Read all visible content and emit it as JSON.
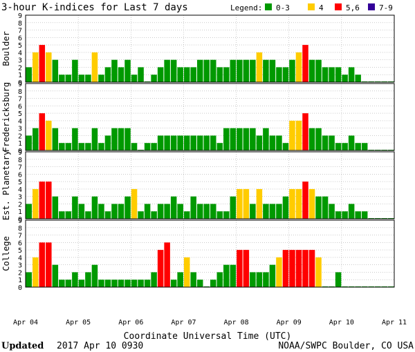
{
  "chart_data": {
    "type": "bar",
    "title": "3-hour K-indices for Last 7 days",
    "legend": {
      "label": "Legend:",
      "entries": [
        {
          "label": "0-3",
          "color": "#009900"
        },
        {
          "label": "4",
          "color": "#ffcc00"
        },
        {
          "label": "5,6",
          "color": "#ff0000"
        },
        {
          "label": "7-9",
          "color": "#330099"
        }
      ]
    },
    "xlabel": "Coordinate Universal Time (UTC)",
    "x_ticks": [
      "Apr 04",
      "Apr 05",
      "Apr 06",
      "Apr 07",
      "Apr 08",
      "Apr 09",
      "Apr 10",
      "Apr 11"
    ],
    "ylim": [
      0,
      9
    ],
    "y_ticks": [
      "0",
      "1",
      "2",
      "3",
      "4",
      "5",
      "6",
      "7",
      "8",
      "9"
    ],
    "bins_per_day": 8,
    "grid": true,
    "series": [
      {
        "name": "Boulder",
        "values": [
          2,
          4,
          5,
          4,
          3,
          1,
          1,
          3,
          1,
          1,
          4,
          1,
          2,
          3,
          2,
          3,
          1,
          2,
          0,
          1,
          2,
          3,
          3,
          2,
          2,
          2,
          3,
          3,
          3,
          2,
          2,
          3,
          3,
          3,
          3,
          4,
          3,
          3,
          2,
          2,
          3,
          4,
          5,
          3,
          3,
          2,
          2,
          2,
          1,
          2,
          1,
          0,
          0,
          0,
          0,
          0
        ]
      },
      {
        "name": "Fredericksburg",
        "values": [
          2,
          3,
          5,
          4,
          3,
          1,
          1,
          3,
          1,
          1,
          3,
          1,
          2,
          3,
          3,
          3,
          1,
          0,
          1,
          1,
          2,
          2,
          2,
          2,
          2,
          2,
          2,
          2,
          2,
          1,
          3,
          3,
          3,
          3,
          3,
          2,
          3,
          2,
          2,
          1,
          4,
          4,
          5,
          3,
          3,
          2,
          2,
          1,
          1,
          2,
          1,
          1,
          0,
          0,
          0,
          0
        ]
      },
      {
        "name": "Est. Planetary",
        "values": [
          2,
          4,
          5,
          5,
          3,
          1,
          1,
          3,
          2,
          1,
          3,
          2,
          1,
          2,
          2,
          3,
          4,
          1,
          2,
          1,
          2,
          2,
          3,
          2,
          1,
          3,
          2,
          2,
          2,
          1,
          1,
          3,
          4,
          4,
          2,
          4,
          2,
          2,
          2,
          3,
          4,
          4,
          5,
          4,
          3,
          3,
          2,
          1,
          1,
          2,
          1,
          1,
          0,
          0,
          0,
          0
        ]
      },
      {
        "name": "College",
        "values": [
          2,
          4,
          6,
          6,
          3,
          1,
          1,
          2,
          1,
          2,
          3,
          1,
          1,
          1,
          1,
          1,
          1,
          1,
          1,
          2,
          5,
          6,
          1,
          2,
          4,
          2,
          1,
          0,
          1,
          2,
          3,
          3,
          5,
          5,
          2,
          2,
          2,
          3,
          4,
          5,
          5,
          5,
          5,
          5,
          4,
          0,
          0,
          2,
          0,
          0,
          0,
          0,
          0,
          0,
          0,
          0
        ]
      }
    ]
  },
  "footer": {
    "updated_label": "Updated",
    "updated_value": "2017 Apr 10 0930",
    "source": "NOAA/SWPC Boulder, CO USA"
  }
}
